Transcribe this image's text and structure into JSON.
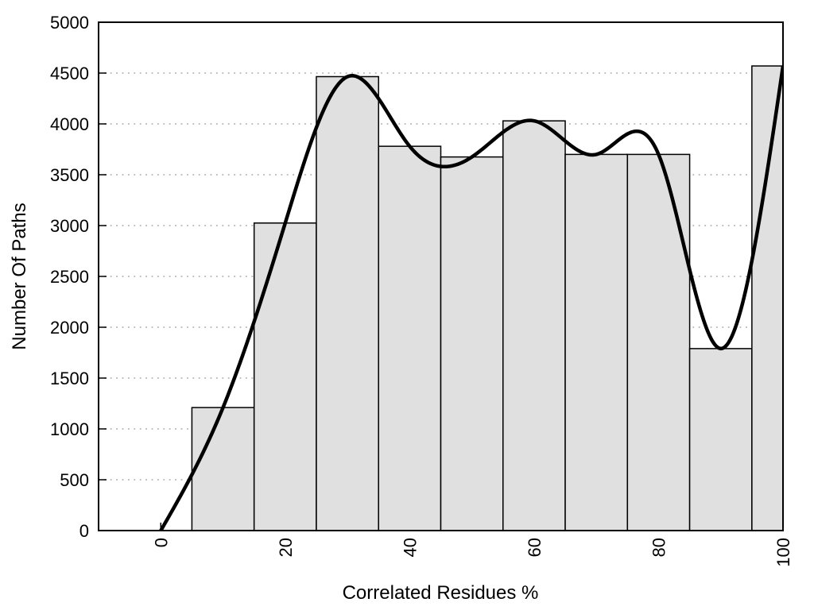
{
  "page": {
    "background": "#ffffff"
  },
  "chart_data": {
    "type": "bar",
    "subtype": "histogram-with-spline-overlay",
    "title": "",
    "xlabel": "Correlated Residues %",
    "ylabel": "Number Of Paths",
    "xlim": [
      -10,
      100
    ],
    "ylim": [
      0,
      5000
    ],
    "xticks": [
      0,
      20,
      40,
      60,
      80,
      100
    ],
    "yticks": [
      0,
      500,
      1000,
      1500,
      2000,
      2500,
      3000,
      3500,
      4000,
      4500,
      5000
    ],
    "x_tick_rotation_deg": -90,
    "grid": {
      "horizontal": true,
      "vertical": false,
      "style": "dotted"
    },
    "legend": "none",
    "bars": {
      "centers": [
        10,
        20,
        30,
        40,
        50,
        60,
        70,
        80,
        90,
        100
      ],
      "width": 10,
      "values": [
        1210,
        3025,
        4465,
        3780,
        3675,
        4030,
        3700,
        3700,
        1790,
        4570
      ],
      "fill": "#e0e0e0",
      "border": "#000000"
    },
    "line": {
      "smoothing": "natural-cubic-spline",
      "x": [
        0,
        10,
        20,
        30,
        40,
        50,
        60,
        70,
        80,
        90,
        100
      ],
      "y": [
        0,
        1210,
        3025,
        4465,
        3780,
        3675,
        4030,
        3700,
        3700,
        1790,
        4570
      ],
      "color": "#000000",
      "stroke_width": 4.5
    },
    "colors": {
      "axis": "#000000",
      "grid": "#b5b5b5",
      "text": "#000000",
      "background": "#ffffff"
    }
  }
}
